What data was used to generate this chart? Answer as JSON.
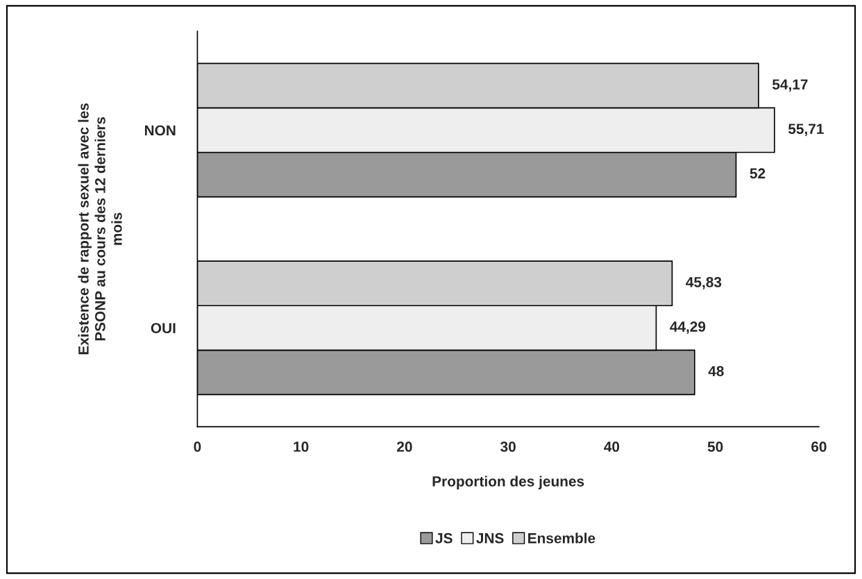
{
  "chart_data": {
    "type": "bar",
    "orientation": "horizontal",
    "ylabel": "Existence de rapport sexuel avec les\nPSONP au cours des 12 derniers\nmois",
    "xlabel": "Proportion des jeunes",
    "categories": [
      "NON",
      "OUI"
    ],
    "series": [
      {
        "name": "JS",
        "color": "#9a9a9a",
        "values": [
          52,
          48
        ],
        "value_labels": [
          "52",
          "48"
        ]
      },
      {
        "name": "JNS",
        "color": "#eeeeee",
        "values": [
          55.71,
          44.29
        ],
        "value_labels": [
          "55,71",
          "44,29"
        ]
      },
      {
        "name": "Ensemble",
        "color": "#cfcfcf",
        "values": [
          54.17,
          45.83
        ],
        "value_labels": [
          "54,17",
          "45,83"
        ]
      }
    ],
    "xlim": [
      0,
      60
    ],
    "xticks": [
      0,
      10,
      20,
      30,
      40,
      50,
      60
    ],
    "grid": false,
    "legend": "bottom"
  }
}
